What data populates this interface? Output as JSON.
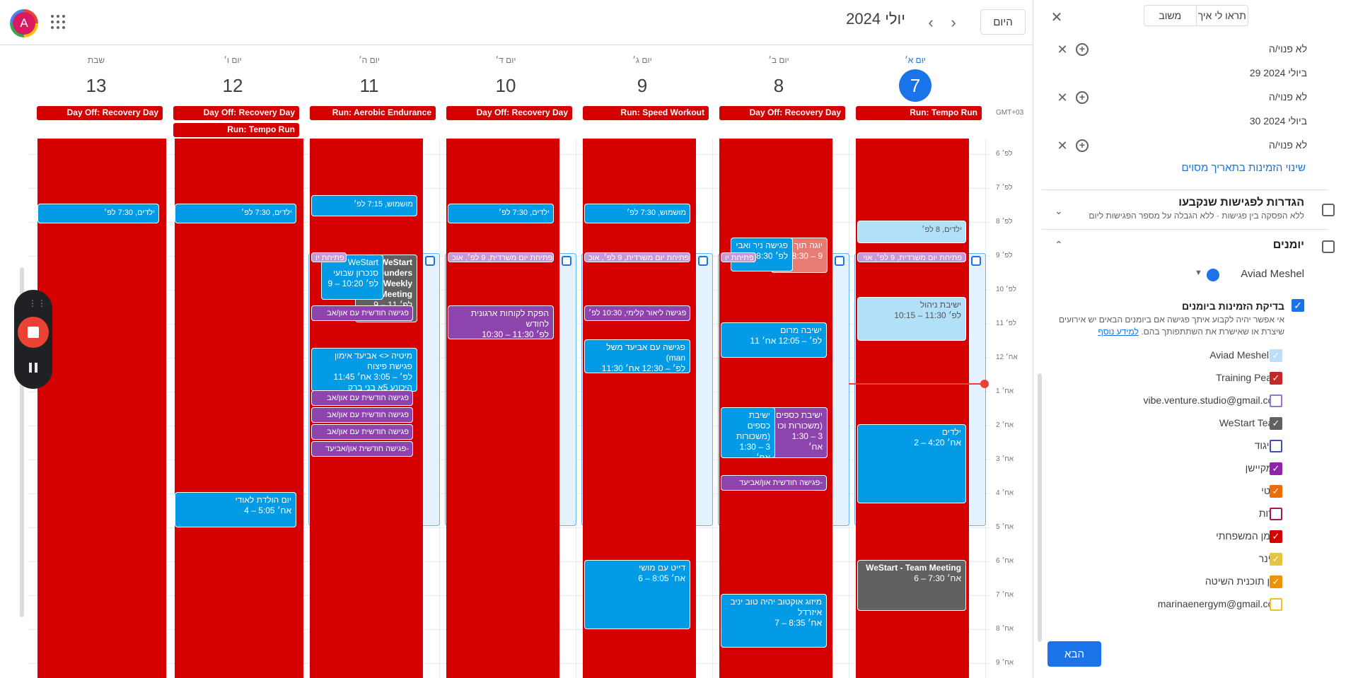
{
  "header": {
    "month_title": "יולי 2024",
    "today_label": "היום",
    "prev_icon": "‹",
    "next_icon": "›"
  },
  "user": {
    "avatar_letter": "A"
  },
  "timezone_label": "GMT+03",
  "days": [
    {
      "name": "יום א׳",
      "num": "7"
    },
    {
      "name": "יום ב׳",
      "num": "8"
    },
    {
      "name": "יום ג׳",
      "num": "9"
    },
    {
      "name": "יום ד׳",
      "num": "10"
    },
    {
      "name": "יום ה׳",
      "num": "11"
    },
    {
      "name": "יום ו׳",
      "num": "12"
    },
    {
      "name": "שבת",
      "num": "13"
    }
  ],
  "allday": [
    "Run: Tempo Run",
    "Day Off: Recovery Day",
    "Run: Speed Workout",
    "Day Off: Recovery Day",
    "Run: Aerobic Endurance",
    "Day Off: Recovery Day",
    "Run: Tempo Run",
    "Day Off: Recovery Day"
  ],
  "hours": [
    "6 לפ׳",
    "7 לפ׳",
    "8 לפ׳",
    "9 לפ׳",
    "10 לפ׳",
    "11 לפ׳",
    "12 אח׳",
    "1 אח׳",
    "2 אח׳",
    "3 אח׳",
    "4 אח׳",
    "5 אח׳",
    "6 אח׳",
    "7 אח׳",
    "8 אח׳",
    "9 אח׳"
  ],
  "events": {
    "d7_yeladim": {
      "title": "ילדים, 8 לפ׳"
    },
    "d7_opening": {
      "title": "פתיחת יום משרדית, 9 לפ׳, אוי"
    },
    "d7_management": {
      "title": "ישיבת ניהול",
      "time": "10:15 – 11:30 לפ׳"
    },
    "d7_yeladim2": {
      "title": "ילדים",
      "time": "2 – 4:20 אח׳"
    },
    "d7_team": {
      "title": "WeStart - Team Meeting",
      "time": "6 – 7:30 אח׳"
    },
    "d8_yoga": {
      "title": "יוגה תוך",
      "time": "8:30 – 9"
    },
    "d8_nir": {
      "title": "פגישה ניר ואבי",
      "time": "8:30 לפ׳"
    },
    "d8_opening": {
      "title": "פתיחת יו"
    },
    "d8_marom": {
      "title": "ישיבה מרום",
      "time": "11 לפ׳ – 12:05 אח׳"
    },
    "d8_money1": {
      "title": "ישיבת כספים (משכורות וכו",
      "time": "1:30 – 3 אח׳"
    },
    "d8_money2": {
      "title": "ישיבת כספים (משכורות",
      "time": "1:30 – 3 אח׳"
    },
    "d8_monthly": {
      "title": "פגישה חודשית און/אביעד-"
    },
    "d8_mizug": {
      "title": "מיזוג אוקטוב יהיה טוב יניב איזרדל",
      "time": "7 – 8:35 אח׳"
    },
    "d9_moshmush": {
      "title": "מושמוש, 7:30 לפ׳"
    },
    "d9_opening": {
      "title": "פתיחת יום משרדית, 9 לפ׳, אוכ"
    },
    "d9_lior": {
      "title": "פגישה ליאור קלימי, 10:30 לפ׳"
    },
    "d9_aviad": {
      "title": "פגישה עם אביעד משל (man",
      "time": "11:30 לפ׳ – 12:30 אח׳"
    },
    "d9_date": {
      "title": "דייט עם מושי",
      "time": "6 – 8:05 אח׳"
    },
    "d10_yeladim": {
      "title": "ילדים, 7:30 לפ׳"
    },
    "d10_opening": {
      "title": "פתיחת יום משרדית, 9 לפ׳, אוכ"
    },
    "d10_hafaka": {
      "title": "הפקת לקוחות ארגונית לחודש",
      "time": "10:30 – 11:30 לפ׳"
    },
    "d11_moshmush": {
      "title": "מושמוש, 7:15 לפ׳"
    },
    "d11_opening": {
      "title": "פתיחת יו"
    },
    "d11_founders": {
      "title": "WeStart Founders Weekly Meeting",
      "time": "9 – 11 לפ׳"
    },
    "d11_sync": {
      "title": "WeStart סנכרון שבועי",
      "time": "9 – 10:20 לפ׳"
    },
    "d11_monthly1": {
      "title": "פגישה חודשית עם און/אב"
    },
    "d11_mitiya": {
      "title": "מיטיה <> אביעד אימון פגישת פיצוח",
      "time": "11:45 לפ׳ – 3:05 אח׳",
      "loc": "היכונע 5א בני ברק"
    },
    "d11_monthly2": {
      "title": "פגישה חודשית עם און/אב"
    },
    "d11_monthly3": {
      "title": "פגישה חודשית עם און/אב"
    },
    "d11_monthly4": {
      "title": "פגישה חודשית עם און/אב"
    },
    "d11_monthly5": {
      "title": "פגישה חודשית און/אביעד-"
    },
    "d12_yeladim": {
      "title": "ילדים, 7:30 לפ׳"
    },
    "d12_birthday": {
      "title": "יום הולדת לאודי",
      "time": "4 – 5:05 אח׳"
    },
    "d13_yeladim": {
      "title": "ילדים, 7:30 לפ׳"
    }
  },
  "panel": {
    "close_icon": "✕",
    "tabs": [
      "תראו לי איך",
      "משוב"
    ],
    "rows": [
      {
        "label": "לא פנוי/ה",
        "type": "slot"
      },
      {
        "label": "29 ביולי 2024",
        "type": "date"
      },
      {
        "label": "לא פנוי/ה",
        "type": "slot"
      },
      {
        "label": "30 ביולי 2024",
        "type": "date"
      },
      {
        "label": "לא פנוי/ה",
        "type": "slot"
      }
    ],
    "change_availability": "שינוי הזמינות בתאריך מסוים",
    "booked_settings_title": "הגדרות לפגישות שנקבעו",
    "booked_settings_sub": "ללא הפסקה בין פגישות · ללא הגבלה על מספר הפגישות ליום",
    "calendars_title": "יומנים",
    "account_name": "Aviad Meshel",
    "check_title": "בדיקת הזמינות ביומנים",
    "check_desc": "אי אפשר יהיה לקבוע איתך פגישה אם ביומנים הבאים יש אירועים שיצרת או שאישרת את השתתפותך בהם.",
    "learn_more": "למידע נוסף",
    "calendars": [
      {
        "name": "Aviad Meshel",
        "color": "#bbdefb",
        "checked": true
      },
      {
        "name": "Training Peaks",
        "color": "#c62828",
        "checked": true
      },
      {
        "name": "vibe.venture.studio@gmail.com",
        "color": "#9575cd",
        "checked": false
      },
      {
        "name": "WeStart Team",
        "color": "#616161",
        "checked": true
      },
      {
        "name": "האיגוד",
        "color": "#3f51b5",
        "checked": false
      },
      {
        "name": "הומקיישן",
        "color": "#8e24aa",
        "checked": true
      },
      {
        "name": "פרטי",
        "color": "#ef6c00",
        "checked": true
      },
      {
        "name": "דירות",
        "color": "#ad1457",
        "checked": false
      },
      {
        "name": "היומן המשפחתי",
        "color": "#d50000",
        "checked": true
      },
      {
        "name": "וובינר",
        "color": "#e4c441",
        "checked": true
      },
      {
        "name": "יומן תוכנית השיטה",
        "color": "#f09300",
        "checked": true
      },
      {
        "name": "marinaenergym@gmail.com",
        "color": "#f6bf26",
        "checked": false
      }
    ],
    "next_label": "הבא"
  }
}
